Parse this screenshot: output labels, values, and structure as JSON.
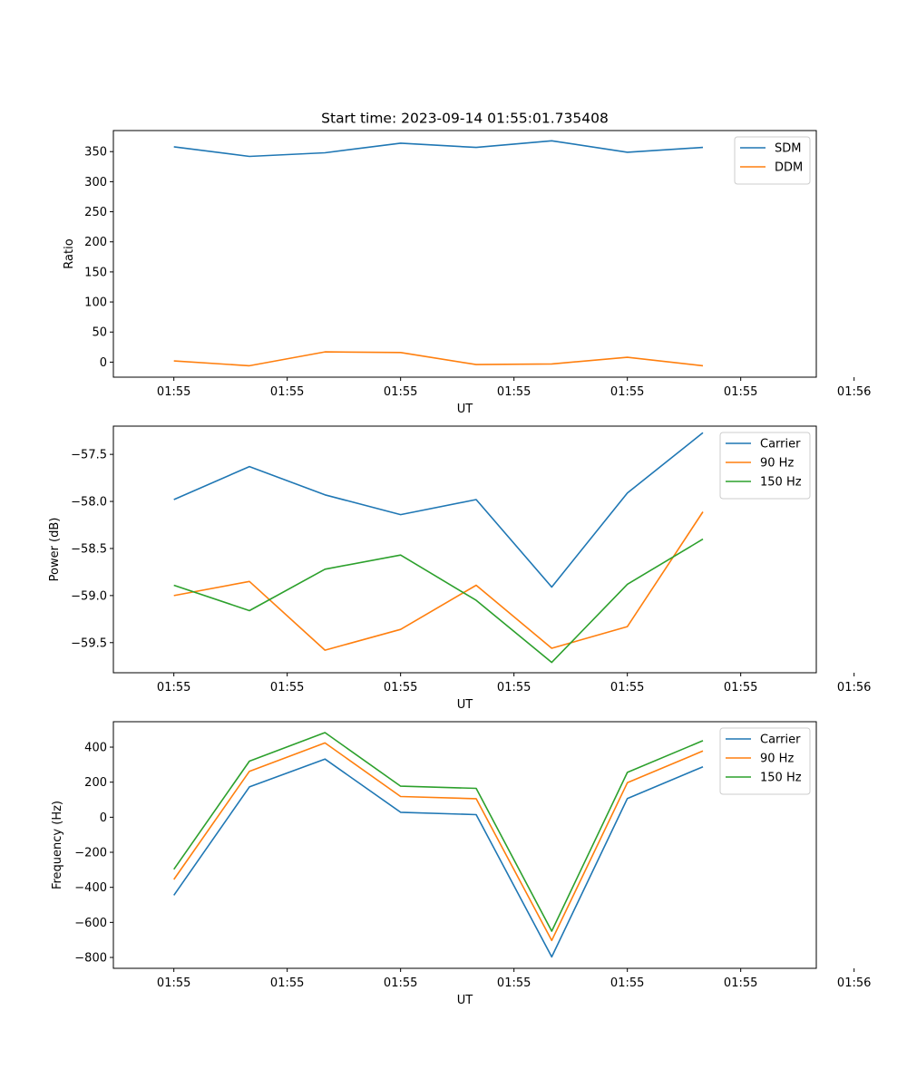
{
  "figure_title": "Start time: 2023-09-14 01:55:01.735408",
  "colors": {
    "blue": "#1f77b4",
    "orange": "#ff7f0e",
    "green": "#2ca02c"
  },
  "chart_data": [
    {
      "type": "line",
      "ylabel": "Ratio",
      "xlabel": "UT",
      "xlim": [
        -0.8,
        8.5
      ],
      "ylim": [
        -25,
        385
      ],
      "yticks": [
        0,
        50,
        100,
        150,
        200,
        250,
        300,
        350
      ],
      "ytick_labels": [
        "0",
        "50",
        "100",
        "150",
        "200",
        "250",
        "300",
        "350"
      ],
      "xticks": [
        0,
        1.5,
        3,
        4.5,
        6,
        7.5,
        9
      ],
      "xtick_labels": [
        "01:55",
        "01:55",
        "01:55",
        "01:55",
        "01:55",
        "01:55",
        "01:56"
      ],
      "x": [
        0,
        1,
        2,
        3,
        4,
        5,
        6,
        7
      ],
      "series": [
        {
          "name": "SDM",
          "color": "#1f77b4",
          "values": [
            358,
            342,
            348,
            364,
            357,
            368,
            349,
            357
          ]
        },
        {
          "name": "DDM",
          "color": "#ff7f0e",
          "values": [
            2,
            -6,
            17,
            16,
            -4,
            -3,
            8,
            -6
          ]
        }
      ]
    },
    {
      "type": "line",
      "ylabel": "Power (dB)",
      "xlabel": "UT",
      "xlim": [
        -0.8,
        8.5
      ],
      "ylim": [
        -59.82,
        -57.2
      ],
      "yticks": [
        -59.5,
        -59.0,
        -58.5,
        -58.0,
        -57.5
      ],
      "ytick_labels": [
        "−59.5",
        "−59.0",
        "−58.5",
        "−58.0",
        "−57.5"
      ],
      "xticks": [
        0,
        1.5,
        3,
        4.5,
        6,
        7.5,
        9
      ],
      "xtick_labels": [
        "01:55",
        "01:55",
        "01:55",
        "01:55",
        "01:55",
        "01:55",
        "01:56"
      ],
      "x": [
        0,
        1,
        2,
        3,
        4,
        5,
        6,
        7
      ],
      "series": [
        {
          "name": "Carrier",
          "color": "#1f77b4",
          "values": [
            -57.98,
            -57.63,
            -57.93,
            -58.14,
            -57.98,
            -58.91,
            -57.91,
            -57.27
          ]
        },
        {
          "name": "90 Hz",
          "color": "#ff7f0e",
          "values": [
            -59.0,
            -58.85,
            -59.58,
            -59.36,
            -58.89,
            -59.56,
            -59.33,
            -58.11
          ]
        },
        {
          "name": "150 Hz",
          "color": "#2ca02c",
          "values": [
            -58.89,
            -59.16,
            -58.72,
            -58.57,
            -59.05,
            -59.71,
            -58.88,
            -58.4
          ]
        }
      ]
    },
    {
      "type": "line",
      "ylabel": "Frequency (Hz)",
      "xlabel": "UT",
      "xlim": [
        -0.8,
        8.5
      ],
      "ylim": [
        -862,
        545
      ],
      "yticks": [
        -800,
        -600,
        -400,
        -200,
        0,
        200,
        400
      ],
      "ytick_labels": [
        "−800",
        "−600",
        "−400",
        "−200",
        "0",
        "200",
        "400"
      ],
      "xticks": [
        0,
        1.5,
        3,
        4.5,
        6,
        7.5,
        9
      ],
      "xtick_labels": [
        "01:55",
        "01:55",
        "01:55",
        "01:55",
        "01:55",
        "01:55",
        "01:56"
      ],
      "x": [
        0,
        1,
        2,
        3,
        4,
        5,
        6,
        7
      ],
      "series": [
        {
          "name": "Carrier",
          "color": "#1f77b4",
          "values": [
            -445,
            173,
            332,
            28,
            15,
            -797,
            107,
            288
          ]
        },
        {
          "name": "90 Hz",
          "color": "#ff7f0e",
          "values": [
            -355,
            262,
            424,
            118,
            106,
            -703,
            197,
            378
          ]
        },
        {
          "name": "150 Hz",
          "color": "#2ca02c",
          "values": [
            -297,
            320,
            483,
            177,
            165,
            -650,
            256,
            437
          ]
        }
      ]
    }
  ]
}
